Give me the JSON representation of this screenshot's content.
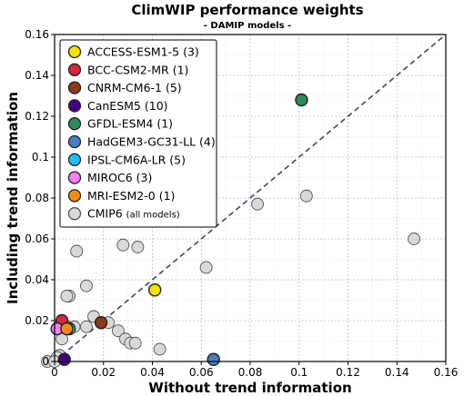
{
  "chart_data": {
    "type": "scatter",
    "title": "ClimWIP performance weights",
    "subtitle": "- DAMIP models -",
    "xlabel": "Without trend information",
    "ylabel": "Including trend information",
    "xlim": [
      0,
      0.16
    ],
    "ylim": [
      0,
      0.16
    ],
    "xticks": [
      "0",
      "0.02",
      "0.04",
      "0.06",
      "0.08",
      "0.1",
      "0.12",
      "0.14",
      "0.16"
    ],
    "yticks": [
      "0",
      "0.02",
      "0.04",
      "0.06",
      "0.08",
      "0.1",
      "0.12",
      "0.14",
      "0.16"
    ],
    "grid": true,
    "diagonal": "dashed 1:1 line",
    "legend_position": "top-left",
    "series": [
      {
        "name": "ACCESS-ESM1-5",
        "count": "(3)",
        "color": "#f5e100",
        "points": [
          [
            0.041,
            0.035
          ]
        ]
      },
      {
        "name": "BCC-CSM2-MR",
        "count": "(1)",
        "color": "#d7263d",
        "points": [
          [
            0.003,
            0.02
          ]
        ]
      },
      {
        "name": "CNRM-CM6-1",
        "count": "(5)",
        "color": "#8b3a1a",
        "points": [
          [
            0.019,
            0.019
          ]
        ]
      },
      {
        "name": "CanESM5",
        "count": "(10)",
        "color": "#4b0082",
        "points": [
          [
            0.004,
            0.001
          ]
        ]
      },
      {
        "name": "GFDL-ESM4",
        "count": "(1)",
        "color": "#2e8b57",
        "points": [
          [
            0.101,
            0.128
          ]
        ]
      },
      {
        "name": "HadGEM3-GC31-LL",
        "count": "(4)",
        "color": "#4a7fc1",
        "points": [
          [
            0.065,
            0.001
          ]
        ]
      },
      {
        "name": "IPSL-CM6A-LR",
        "count": "(5)",
        "color": "#1ec0f0",
        "points": [
          [
            0.006,
            0.016
          ]
        ]
      },
      {
        "name": "MIROC6",
        "count": "(3)",
        "color": "#ee82ee",
        "points": [
          [
            0.001,
            0.016
          ]
        ]
      },
      {
        "name": "MRI-ESM2-0",
        "count": "(1)",
        "color": "#f28c1b",
        "points": [
          [
            0.005,
            0.016
          ]
        ]
      },
      {
        "name": "CMIP6",
        "count": "(all models)",
        "color": "#d9d9d9",
        "points": [
          [
            0.147,
            0.06
          ],
          [
            0.103,
            0.081
          ],
          [
            0.083,
            0.077
          ],
          [
            0.062,
            0.046
          ],
          [
            0.03,
            0.07
          ],
          [
            0.028,
            0.057
          ],
          [
            0.034,
            0.056
          ],
          [
            0.009,
            0.054
          ],
          [
            0.013,
            0.037
          ],
          [
            0.006,
            0.032
          ],
          [
            0.005,
            0.032
          ],
          [
            0.016,
            0.022
          ],
          [
            0.013,
            0.017
          ],
          [
            0.008,
            0.017
          ],
          [
            0.022,
            0.019
          ],
          [
            0.026,
            0.015
          ],
          [
            0.029,
            0.011
          ],
          [
            0.031,
            0.009
          ],
          [
            0.033,
            0.009
          ],
          [
            0.043,
            0.006
          ],
          [
            0.003,
            0.011
          ],
          [
            0.002,
            0.003
          ],
          [
            0.001,
            0.002
          ],
          [
            -0.003,
            0.0
          ],
          [
            0.0,
            0.0
          ],
          [
            0.005,
            0.017
          ]
        ]
      }
    ]
  }
}
